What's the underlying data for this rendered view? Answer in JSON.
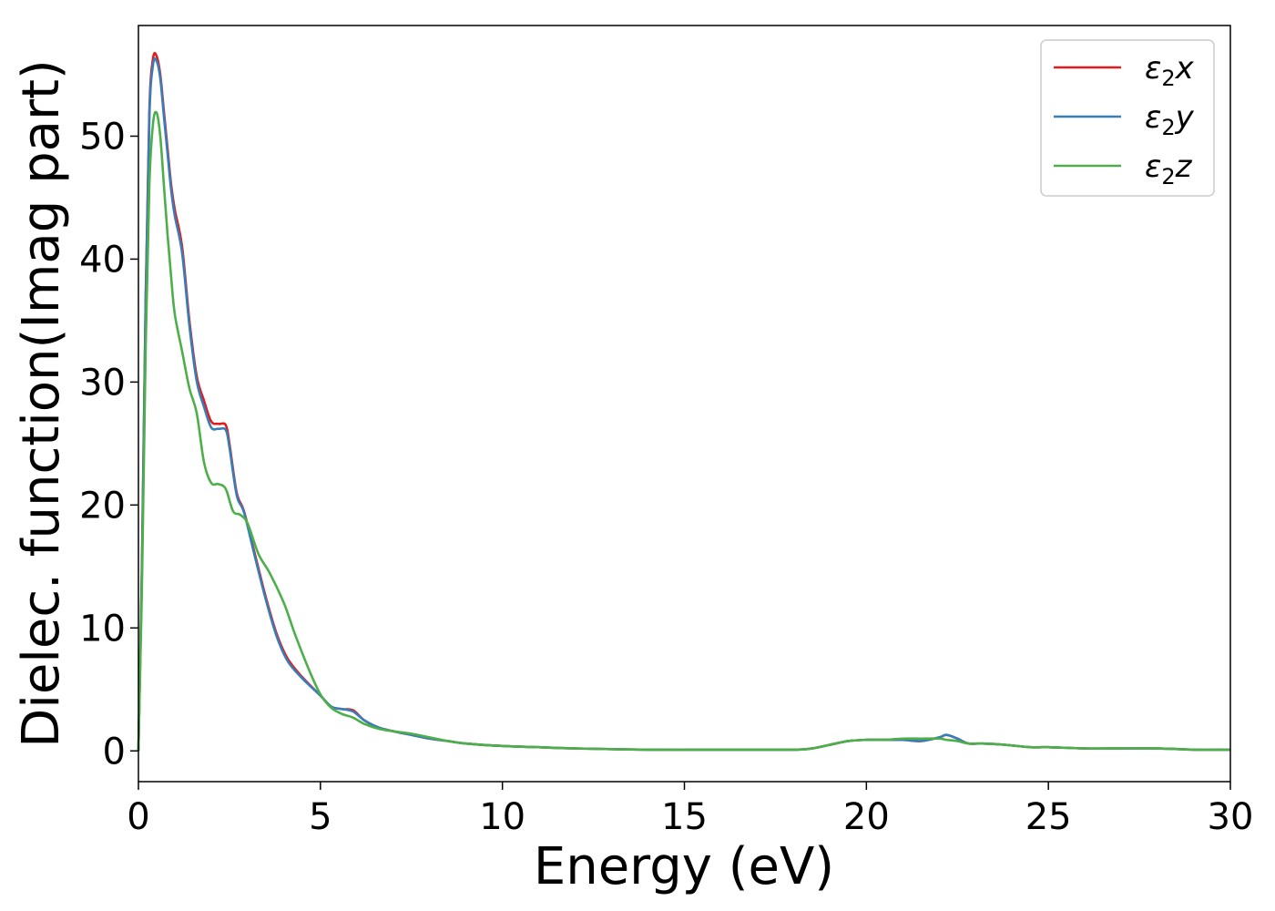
{
  "chart_data": {
    "type": "line",
    "title": "",
    "xlabel": "Energy (eV)",
    "ylabel": "Dielec. function(Imag part)",
    "xlim": [
      0,
      30
    ],
    "ylim": [
      -2.5,
      59
    ],
    "xticks": [
      0,
      5,
      10,
      15,
      20,
      25,
      30
    ],
    "yticks": [
      0,
      10,
      20,
      30,
      40,
      50
    ],
    "grid": false,
    "legend_position": "top-right",
    "series": [
      {
        "name": "ε₂x",
        "legend_base": "ε",
        "legend_sub": "2",
        "legend_suffix": "x",
        "color": "#e41a1c",
        "x": [
          0,
          0.1,
          0.2,
          0.3,
          0.4,
          0.5,
          0.6,
          0.7,
          0.8,
          0.9,
          1.0,
          1.2,
          1.4,
          1.6,
          1.8,
          2.0,
          2.2,
          2.4,
          2.5,
          2.7,
          2.9,
          3.2,
          3.5,
          3.8,
          4.1,
          4.5,
          5.0,
          5.3,
          5.6,
          5.9,
          6.2,
          6.6,
          7.0,
          7.5,
          8.0,
          8.5,
          9.0,
          10.0,
          11.0,
          12.0,
          14.0,
          16.0,
          18.0,
          18.5,
          19.0,
          19.5,
          20.0,
          20.5,
          21.0,
          21.5,
          22.0,
          22.2,
          22.5,
          22.8,
          23.2,
          23.8,
          24.5,
          25.0,
          26.0,
          27.0,
          28.0,
          29.0,
          30.0
        ],
        "values": [
          0,
          16,
          37,
          52,
          56.3,
          56.5,
          55,
          52,
          49,
          46,
          44,
          41,
          35,
          30.5,
          28.5,
          26.8,
          26.6,
          26.5,
          25,
          21,
          19.5,
          16,
          12.5,
          9.5,
          7.5,
          6,
          4.5,
          3.6,
          3.4,
          3.3,
          2.5,
          1.9,
          1.6,
          1.3,
          1.0,
          0.8,
          0.6,
          0.4,
          0.3,
          0.2,
          0.1,
          0.1,
          0.1,
          0.2,
          0.5,
          0.8,
          0.9,
          0.9,
          0.9,
          0.8,
          1.1,
          1.3,
          1.0,
          0.6,
          0.6,
          0.5,
          0.3,
          0.3,
          0.2,
          0.2,
          0.2,
          0.1,
          0.1
        ]
      },
      {
        "name": "ε₂y",
        "legend_base": "ε",
        "legend_sub": "2",
        "legend_suffix": "y",
        "color": "#377eb8",
        "x": [
          0,
          0.1,
          0.2,
          0.3,
          0.4,
          0.5,
          0.6,
          0.7,
          0.8,
          0.9,
          1.0,
          1.2,
          1.4,
          1.6,
          1.8,
          2.0,
          2.2,
          2.4,
          2.5,
          2.7,
          2.9,
          3.2,
          3.5,
          3.8,
          4.1,
          4.5,
          5.0,
          5.3,
          5.6,
          5.9,
          6.2,
          6.6,
          7.0,
          7.5,
          8.0,
          8.5,
          9.0,
          10.0,
          11.0,
          12.0,
          14.0,
          16.0,
          18.0,
          18.5,
          19.0,
          19.5,
          20.0,
          20.5,
          21.0,
          21.5,
          22.0,
          22.2,
          22.5,
          22.8,
          23.2,
          23.8,
          24.5,
          25.0,
          26.0,
          27.0,
          28.0,
          29.0,
          30.0
        ],
        "values": [
          0,
          15.5,
          36.5,
          51.5,
          55.8,
          56.1,
          54.7,
          51.6,
          48.6,
          45.6,
          43.5,
          40.5,
          34.6,
          30.1,
          28,
          26.3,
          26.2,
          26.1,
          24.7,
          20.8,
          19.4,
          15.8,
          12.3,
          9.3,
          7.3,
          5.9,
          4.5,
          3.6,
          3.4,
          3.2,
          2.5,
          1.9,
          1.6,
          1.3,
          1.0,
          0.8,
          0.6,
          0.4,
          0.3,
          0.2,
          0.1,
          0.1,
          0.1,
          0.2,
          0.5,
          0.8,
          0.9,
          0.9,
          0.9,
          0.8,
          1.1,
          1.3,
          1.0,
          0.6,
          0.6,
          0.5,
          0.3,
          0.3,
          0.2,
          0.2,
          0.2,
          0.1,
          0.1
        ]
      },
      {
        "name": "ε₂z",
        "legend_base": "ε",
        "legend_sub": "2",
        "legend_suffix": "z",
        "color": "#4daf4a",
        "x": [
          0,
          0.1,
          0.2,
          0.3,
          0.4,
          0.5,
          0.6,
          0.7,
          0.8,
          0.9,
          1.0,
          1.2,
          1.4,
          1.6,
          1.8,
          2.0,
          2.2,
          2.4,
          2.6,
          2.8,
          3.0,
          3.3,
          3.6,
          4.0,
          4.3,
          4.7,
          5.0,
          5.3,
          5.6,
          5.9,
          6.2,
          6.6,
          7.0,
          7.5,
          8.0,
          8.5,
          9.0,
          10.0,
          11.0,
          12.0,
          14.0,
          16.0,
          18.0,
          18.5,
          19.0,
          19.5,
          20.0,
          20.5,
          21.0,
          21.5,
          22.0,
          22.2,
          22.5,
          22.8,
          23.2,
          23.8,
          24.5,
          25.0,
          26.0,
          27.0,
          28.0,
          29.0,
          30.0
        ],
        "values": [
          0,
          14,
          33,
          46,
          51,
          51.9,
          50,
          46,
          42,
          38.5,
          35.5,
          32.5,
          29.5,
          27.5,
          23.5,
          21.8,
          21.7,
          21.3,
          19.5,
          19.2,
          18.5,
          16,
          14.5,
          12,
          9.5,
          6.5,
          4.6,
          3.5,
          3.0,
          2.7,
          2.2,
          1.8,
          1.6,
          1.4,
          1.1,
          0.8,
          0.6,
          0.4,
          0.3,
          0.2,
          0.1,
          0.1,
          0.1,
          0.2,
          0.5,
          0.8,
          0.9,
          0.9,
          1.0,
          1.0,
          1.0,
          0.9,
          0.8,
          0.6,
          0.6,
          0.5,
          0.3,
          0.3,
          0.2,
          0.2,
          0.2,
          0.1,
          0.1
        ]
      }
    ]
  }
}
